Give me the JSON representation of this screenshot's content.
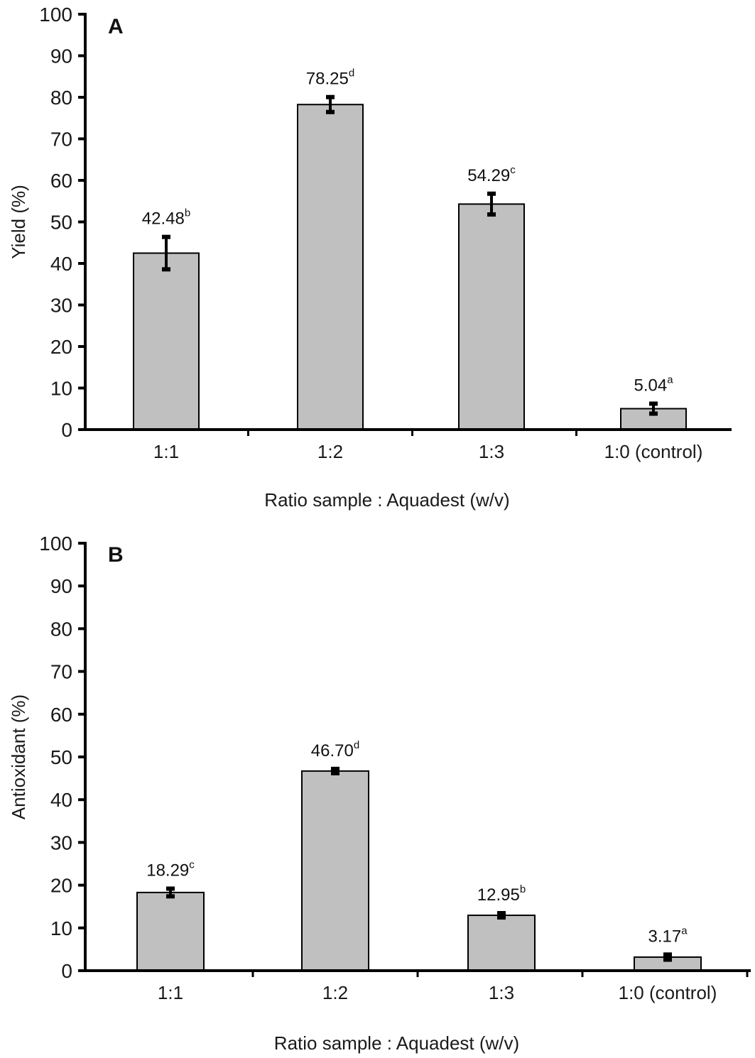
{
  "chart_data": [
    {
      "panel": "A",
      "type": "bar",
      "categories": [
        "1:1",
        "1:2",
        "1:3",
        "1:0 (control)"
      ],
      "values": [
        42.48,
        78.25,
        54.29,
        5.04
      ],
      "errors": [
        3.9,
        1.8,
        2.5,
        1.2
      ],
      "value_labels": [
        "42.48",
        "78.25",
        "54.29",
        "5.04"
      ],
      "significance": [
        "b",
        "d",
        "c",
        "a"
      ],
      "xlabel": "Ratio sample : Aquadest (w/v)",
      "ylabel": "Yield (%)",
      "ylim": [
        0,
        100
      ],
      "yticks": [
        0,
        10,
        20,
        30,
        40,
        50,
        60,
        70,
        80,
        90,
        100
      ],
      "grid": false,
      "bar_color": "#c0c0c0"
    },
    {
      "panel": "B",
      "type": "bar",
      "categories": [
        "1:1",
        "1:2",
        "1:3",
        "1:0 (control)"
      ],
      "values": [
        18.29,
        46.7,
        12.95,
        3.17
      ],
      "errors": [
        0.9,
        0.5,
        0.5,
        0.6
      ],
      "value_labels": [
        "18.29",
        "46.70",
        "12.95",
        "3.17"
      ],
      "significance": [
        "c",
        "d",
        "b",
        "a"
      ],
      "xlabel": "Ratio sample : Aquadest (w/v)",
      "ylabel": "Antioxidant (%)",
      "ylim": [
        0,
        100
      ],
      "yticks": [
        0,
        10,
        20,
        30,
        40,
        50,
        60,
        70,
        80,
        90,
        100
      ],
      "grid": false,
      "bar_color": "#c0c0c0"
    }
  ]
}
